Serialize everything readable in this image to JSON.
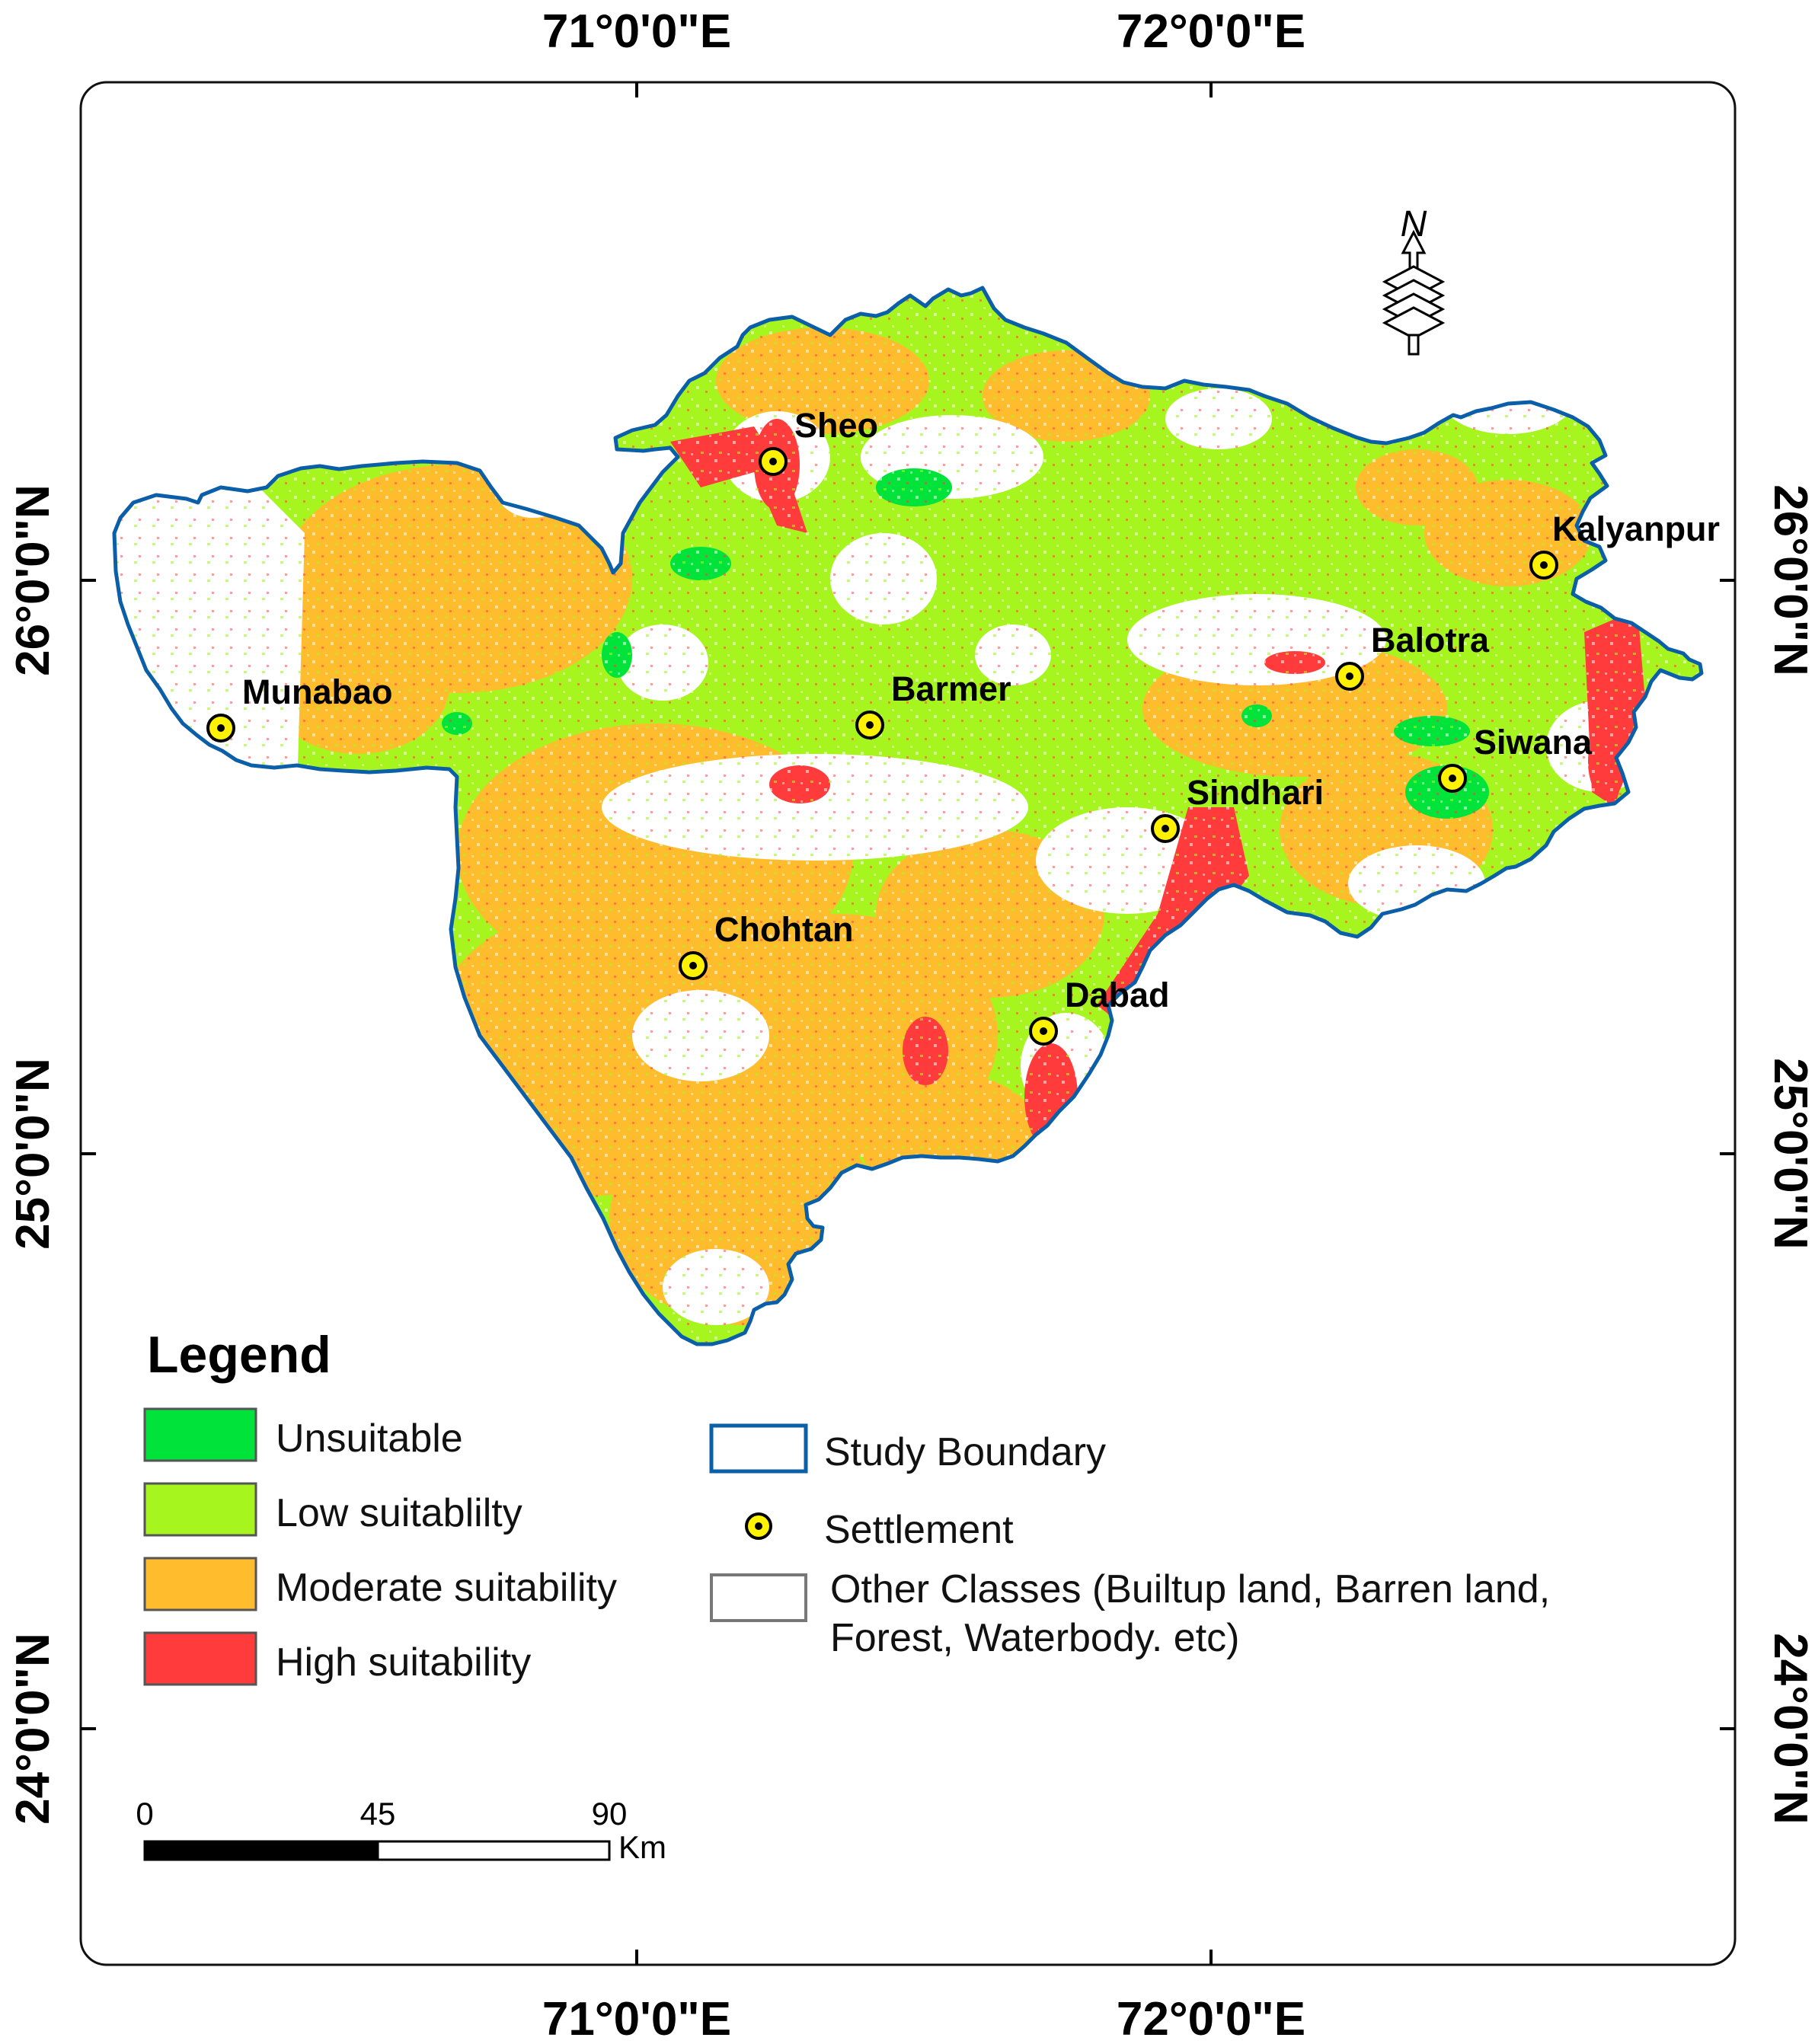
{
  "map": {
    "longitude_labels": [
      "71°0'0\"E",
      "72°0'0\"E"
    ],
    "latitude_labels": [
      "26°0'0\"N",
      "25°0'0\"N",
      "24°0'0\"N"
    ],
    "north_label": "N",
    "settlements": [
      "Sheo",
      "Kalyanpur",
      "Balotra",
      "Munabao",
      "Barmer",
      "Siwana",
      "Sindhari",
      "Chohtan",
      "Dabad"
    ]
  },
  "legend": {
    "title": "Legend",
    "classes": [
      {
        "label": "Unsuitable",
        "color": "#00e33a"
      },
      {
        "label": "Low suitablilty",
        "color": "#a6f51f"
      },
      {
        "label": "Moderate suitability",
        "color": "#ffbd2e"
      },
      {
        "label": "High suitability",
        "color": "#ff3b3b"
      }
    ],
    "boundary_label": "Study Boundary",
    "boundary_color": "#0b5ea8",
    "settlement_label": "Settlement",
    "settlement_color": "#fff200",
    "other_label_line1": "Other Classes (Builtup land, Barren land,",
    "other_label_line2": "Forest, Waterbody. etc)"
  },
  "scale_bar": {
    "ticks": [
      "0",
      "45",
      "90"
    ],
    "unit": "Km"
  }
}
